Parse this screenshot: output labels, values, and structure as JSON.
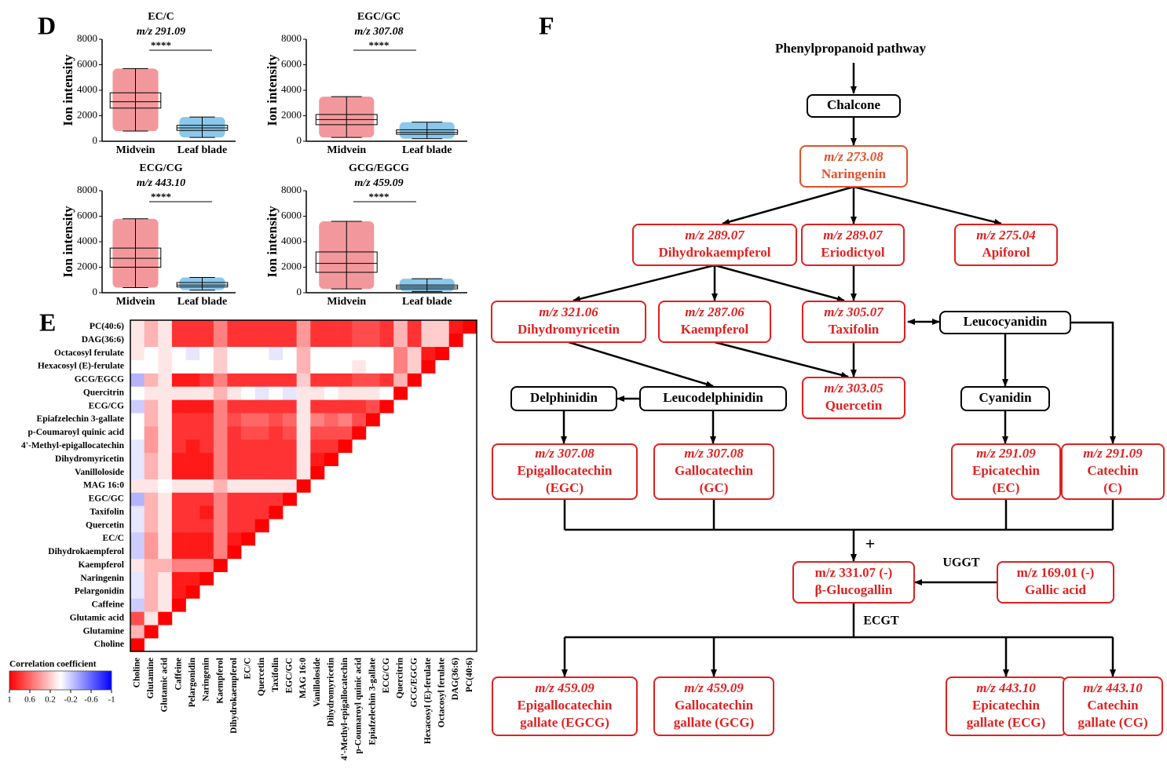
{
  "panels": {
    "D": "D",
    "E": "E",
    "F": "F"
  },
  "boxplots": [
    {
      "type": "box",
      "title": "EC/C",
      "subtitle": "m/z 291.09",
      "significance": "****",
      "ylabel": "Ion intensity",
      "categories": [
        "Midvein",
        "Leaf  blade"
      ],
      "ylim": [
        0,
        8000
      ],
      "yticks": [
        0,
        2000,
        4000,
        6000,
        8000
      ],
      "boxes": [
        {
          "whislo": 800,
          "q1": 2600,
          "med": 3100,
          "q3": 3800,
          "whishi": 5700,
          "color": "#e8434a"
        },
        {
          "whislo": 300,
          "q1": 850,
          "med": 1050,
          "q3": 1250,
          "whishi": 1900,
          "color": "#2b9bd8"
        }
      ]
    },
    {
      "type": "box",
      "title": "EGC/GC",
      "subtitle": "m/z 307.08",
      "significance": "****",
      "ylabel": "Ion intensity",
      "categories": [
        "Midvein",
        "Leaf  blade"
      ],
      "ylim": [
        0,
        8000
      ],
      "yticks": [
        0,
        2000,
        4000,
        6000,
        8000
      ],
      "boxes": [
        {
          "whislo": 300,
          "q1": 1300,
          "med": 1700,
          "q3": 2100,
          "whishi": 3500,
          "color": "#e8434a"
        },
        {
          "whislo": 200,
          "q1": 550,
          "med": 700,
          "q3": 900,
          "whishi": 1500,
          "color": "#2b9bd8"
        }
      ]
    },
    {
      "type": "box",
      "title": "ECG/CG",
      "subtitle": "m/z 443.10",
      "significance": "****",
      "ylabel": "Ion intensity",
      "categories": [
        "Midvein",
        "Leaf  blade"
      ],
      "ylim": [
        0,
        8000
      ],
      "yticks": [
        0,
        2000,
        4000,
        6000,
        8000
      ],
      "boxes": [
        {
          "whislo": 400,
          "q1": 2000,
          "med": 2700,
          "q3": 3500,
          "whishi": 5800,
          "color": "#e8434a"
        },
        {
          "whislo": 200,
          "q1": 450,
          "med": 600,
          "q3": 800,
          "whishi": 1200,
          "color": "#2b9bd8"
        }
      ]
    },
    {
      "type": "box",
      "title": "GCG/EGCG",
      "subtitle": "m/z 459.09",
      "significance": "****",
      "ylabel": "Ion intensity",
      "categories": [
        "Midvein",
        "Leaf  blade"
      ],
      "ylim": [
        0,
        8000
      ],
      "yticks": [
        0,
        2000,
        4000,
        6000,
        8000
      ],
      "boxes": [
        {
          "whislo": 300,
          "q1": 1600,
          "med": 2300,
          "q3": 3200,
          "whishi": 5600,
          "color": "#e8434a"
        },
        {
          "whislo": 100,
          "q1": 300,
          "med": 450,
          "q3": 600,
          "whishi": 1100,
          "color": "#2b9bd8"
        }
      ]
    }
  ],
  "heatmap": {
    "type": "heatmap",
    "labels": [
      "Choline",
      "Glutamine",
      "Glutamic acid",
      "Caffeine",
      "Pelargonidin",
      "Naringenin",
      "Kaempferol",
      "Dihydrokaempferol",
      "EC/C",
      "Quercetin",
      "Taxifolin",
      "EGC/GC",
      "MAG 16:0",
      "Vanilloloside",
      "Dihydromyricetin",
      "4'-Methyl-epigallocatechin",
      "p-Coumaroyl quinic acid",
      "Epiafzelechin 3-gallate",
      "ECG/CG",
      "Quercitrin",
      "GCG/EGCG",
      "Hexacosyl (E)-ferulate",
      "Octacosyl ferulate",
      "DAG(36:6)",
      "PC(40:6)"
    ],
    "cmap": [
      "#0000ff",
      "#ffffff",
      "#ff0000"
    ],
    "clim": [
      1,
      -1
    ],
    "colorbar_title": "Correlation coefficient",
    "colorbar_ticks": [
      1,
      0.6,
      0.2,
      -0.2,
      -0.6,
      -1
    ],
    "values": [
      [
        1
      ],
      [
        0.3,
        1
      ],
      [
        0.7,
        0.1,
        1
      ],
      [
        -0.2,
        0.3,
        0.1,
        1
      ],
      [
        -0.1,
        0.3,
        0.1,
        0.9,
        1
      ],
      [
        -0.1,
        0.3,
        0.1,
        0.9,
        0.9,
        1
      ],
      [
        0.1,
        0.3,
        0.3,
        0.5,
        0.5,
        0.5,
        1
      ],
      [
        -0.2,
        0.4,
        0.1,
        0.9,
        0.9,
        0.9,
        0.5,
        1
      ],
      [
        -0.2,
        0.4,
        0.1,
        0.9,
        0.9,
        0.9,
        0.5,
        0.9,
        1
      ],
      [
        -0.1,
        0.3,
        0.1,
        0.8,
        0.8,
        0.8,
        0.5,
        0.8,
        0.8,
        1
      ],
      [
        -0.1,
        0.3,
        0.1,
        0.8,
        0.8,
        0.9,
        0.5,
        0.8,
        0.8,
        0.8,
        1
      ],
      [
        -0.3,
        0.3,
        0.1,
        0.8,
        0.8,
        0.8,
        0.5,
        0.8,
        0.8,
        0.8,
        0.8,
        1
      ],
      [
        0.1,
        0.1,
        0,
        0.1,
        0.1,
        0.1,
        0.3,
        0.1,
        0.1,
        0.1,
        0.1,
        0.1,
        1
      ],
      [
        -0.1,
        0.3,
        0.1,
        0.9,
        0.9,
        0.9,
        0.5,
        0.8,
        0.8,
        0.8,
        0.8,
        0.8,
        0.1,
        1
      ],
      [
        -0.1,
        0.3,
        0.1,
        0.9,
        0.9,
        0.9,
        0.5,
        0.8,
        0.8,
        0.8,
        0.8,
        0.8,
        0.1,
        0.9,
        1
      ],
      [
        -0.1,
        0.4,
        0.1,
        0.8,
        0.9,
        0.8,
        0.5,
        0.8,
        0.8,
        0.8,
        0.8,
        0.8,
        0.1,
        0.8,
        0.8,
        1
      ],
      [
        0,
        0.4,
        0.1,
        0.8,
        0.8,
        0.8,
        0.5,
        0.8,
        0.7,
        0.7,
        0.8,
        0.7,
        0.1,
        0.7,
        0.7,
        0.7,
        1
      ],
      [
        0,
        0.3,
        0.1,
        0.8,
        0.8,
        0.8,
        0.5,
        0.7,
        0.6,
        0.6,
        0.7,
        0.6,
        0.1,
        0.5,
        0.6,
        0.5,
        0.7,
        1
      ],
      [
        -0.2,
        0.3,
        0.1,
        0.9,
        0.9,
        0.9,
        0.5,
        0.8,
        0.8,
        0.8,
        0.8,
        0.8,
        0.1,
        0.8,
        0.8,
        0.8,
        0.8,
        0.7,
        1
      ],
      [
        0,
        0.1,
        0.1,
        0.1,
        0.1,
        0.1,
        0.3,
        0.1,
        0,
        -0.1,
        0,
        -0.1,
        0.1,
        0.1,
        0,
        0.1,
        0.1,
        0.1,
        0,
        1
      ],
      [
        -0.3,
        0.3,
        0.1,
        0.9,
        0.9,
        0.8,
        0.5,
        0.8,
        0.8,
        0.8,
        0.8,
        0.8,
        0.2,
        0.8,
        0.8,
        0.8,
        0.7,
        0.7,
        0.8,
        0.3,
        1
      ],
      [
        0,
        0,
        0.1,
        0,
        0,
        0,
        0.2,
        0,
        0,
        0,
        0,
        0,
        0.3,
        0,
        0,
        0,
        0.1,
        0,
        0,
        0.5,
        0.2,
        1
      ],
      [
        0.1,
        0,
        0.1,
        0,
        -0.1,
        0,
        0.2,
        0,
        0,
        0,
        -0.1,
        0,
        0.3,
        0,
        0,
        0,
        0,
        0,
        0,
        0.5,
        0.2,
        0.9,
        1
      ],
      [
        0.1,
        0.3,
        0.1,
        0.8,
        0.8,
        0.8,
        0.5,
        0.8,
        0.8,
        0.8,
        0.8,
        0.8,
        0.4,
        0.8,
        0.8,
        0.8,
        0.7,
        0.7,
        0.8,
        0.3,
        0.8,
        0.2,
        0.2,
        1
      ],
      [
        0.1,
        0.3,
        0.1,
        0.8,
        0.8,
        0.8,
        0.5,
        0.8,
        0.8,
        0.8,
        0.8,
        0.8,
        0.4,
        0.8,
        0.8,
        0.8,
        0.7,
        0.7,
        0.8,
        0.3,
        0.8,
        0.2,
        0.2,
        0.9,
        1
      ]
    ]
  },
  "pathway": {
    "nodes": [
      {
        "lines": [
          "Phenylpropanoid pathway"
        ],
        "color": "#000000"
      },
      {
        "lines": [
          "Chalcone"
        ],
        "color": "#000000"
      },
      {
        "lines": [
          "m/z 273.08",
          "Naringenin"
        ],
        "color": "#e0502a"
      },
      {
        "lines": [
          "m/z 289.07",
          "Dihydrokaempferol"
        ],
        "color": "#e02020"
      },
      {
        "lines": [
          "m/z 289.07",
          "Eriodictyol"
        ],
        "color": "#e02020"
      },
      {
        "lines": [
          "m/z 275.04",
          "Apiforol"
        ],
        "color": "#e02020"
      },
      {
        "lines": [
          "m/z 321.06",
          "Dihydromyricetin"
        ],
        "color": "#e02020"
      },
      {
        "lines": [
          "m/z 287.06",
          "Kaempferol"
        ],
        "color": "#e02020"
      },
      {
        "lines": [
          "m/z 305.07",
          "Taxifolin"
        ],
        "color": "#e02020"
      },
      {
        "lines": [
          "Leucocyanidin"
        ],
        "color": "#000000"
      },
      {
        "lines": [
          "m/z 303.05",
          "Quercetin"
        ],
        "color": "#e02020"
      },
      {
        "lines": [
          "Delphinidin"
        ],
        "color": "#000000"
      },
      {
        "lines": [
          "Leucodelphinidin"
        ],
        "color": "#000000"
      },
      {
        "lines": [
          "Cyanidin"
        ],
        "color": "#000000"
      },
      {
        "lines": [
          "m/z 307.08",
          "Epigallocatechin",
          "(EGC)"
        ],
        "color": "#e02020"
      },
      {
        "lines": [
          "m/z 307.08",
          "Gallocatechin",
          "(GC)"
        ],
        "color": "#e02020"
      },
      {
        "lines": [
          "m/z 291.09",
          "Epicatechin",
          "(EC)"
        ],
        "color": "#e02020"
      },
      {
        "lines": [
          "m/z 291.09",
          "Catechin",
          "(C)"
        ],
        "color": "#e02020"
      },
      {
        "lines": [
          "m/z 331.07 (-)",
          "β-Glucogallin"
        ],
        "color": "#e02020"
      },
      {
        "lines": [
          "m/z 169.01 (-)",
          "Gallic acid"
        ],
        "color": "#e02020"
      },
      {
        "lines": [
          "m/z 459.09",
          "Epigallocatechin",
          "gallate (EGCG)"
        ],
        "color": "#e02020"
      },
      {
        "lines": [
          "m/z 459.09",
          "Gallocatechin",
          "gallate (GCG)"
        ],
        "color": "#e02020"
      },
      {
        "lines": [
          "m/z 443.10",
          "Epicatechin",
          "gallate (ECG)"
        ],
        "color": "#e02020"
      },
      {
        "lines": [
          "m/z 443.10",
          "Catechin",
          "gallate (CG)"
        ],
        "color": "#e02020"
      }
    ],
    "labels": [
      "+",
      "UGGT",
      "ECGT"
    ]
  }
}
